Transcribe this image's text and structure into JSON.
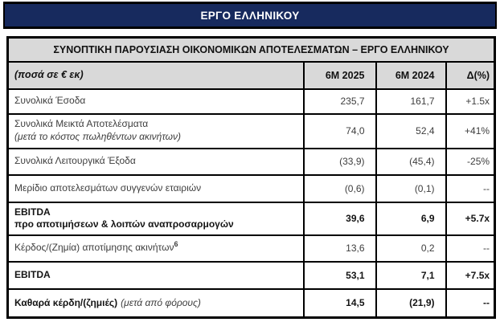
{
  "banner": {
    "title": "ΕΡΓΟ ΕΛΛΗΝΙΚΟΥ"
  },
  "colors": {
    "banner_bg": "#172a5e",
    "banner_text": "#ffffff",
    "header_bg": "#d9d9d9",
    "border": "#000000"
  },
  "table": {
    "title": "ΣΥΝΟΠΤΙΚΗ ΠΑΡΟΥΣΙΑΣΗ ΟΙΚΟΝΟΜΙΚΩΝ ΑΠΟΤΕΛΕΣΜΑΤΩΝ – ΕΡΓΟ ΕΛΛΗΝΙΚΟΥ",
    "columns": {
      "label": "(ποσά σε € εκ)",
      "period1": "6M 2025",
      "period2": "6M 2024",
      "delta": "Δ(%)"
    },
    "rows": [
      {
        "label": "Συνολικά Έσοδα",
        "v2025": "235,7",
        "v2024": "161,7",
        "delta": "+1.5x"
      },
      {
        "label": "Συνολικά Μεικτά Αποτελέσματα",
        "label2": "(μετά το κόστος πωληθέντων ακινήτων)",
        "v2025": "74,0",
        "v2024": "52,4",
        "delta": "+41%"
      },
      {
        "label": "Συνολικά Λειτουργικά Έξοδα",
        "v2025": "(33,9)",
        "v2024": "(45,4)",
        "delta": "-25%"
      },
      {
        "label": "Μερίδιο αποτελεσμάτων συγγενών εταιριών",
        "v2025": "(0,6)",
        "v2024": "(0,1)",
        "delta": "--"
      },
      {
        "label": "EBITDA",
        "label2": "προ αποτιμήσεων & λοιπών αναπροσαρμογών",
        "v2025": "39,6",
        "v2024": "6,9",
        "delta": "+5.7x"
      },
      {
        "label": "Κέρδος/(Ζημία) αποτίμησης ακινήτων",
        "sup": "6",
        "v2025": "13,6",
        "v2024": "0,2",
        "delta": "--"
      },
      {
        "label": "EBITDA",
        "v2025": "53,1",
        "v2024": "7,1",
        "delta": "+7.5x"
      },
      {
        "label": "Καθαρά κέρδη/(ζημιές)",
        "suffix": "(μετά από φόρους)",
        "v2025": "14,5",
        "v2024": "(21,9)",
        "delta": "--"
      }
    ]
  }
}
